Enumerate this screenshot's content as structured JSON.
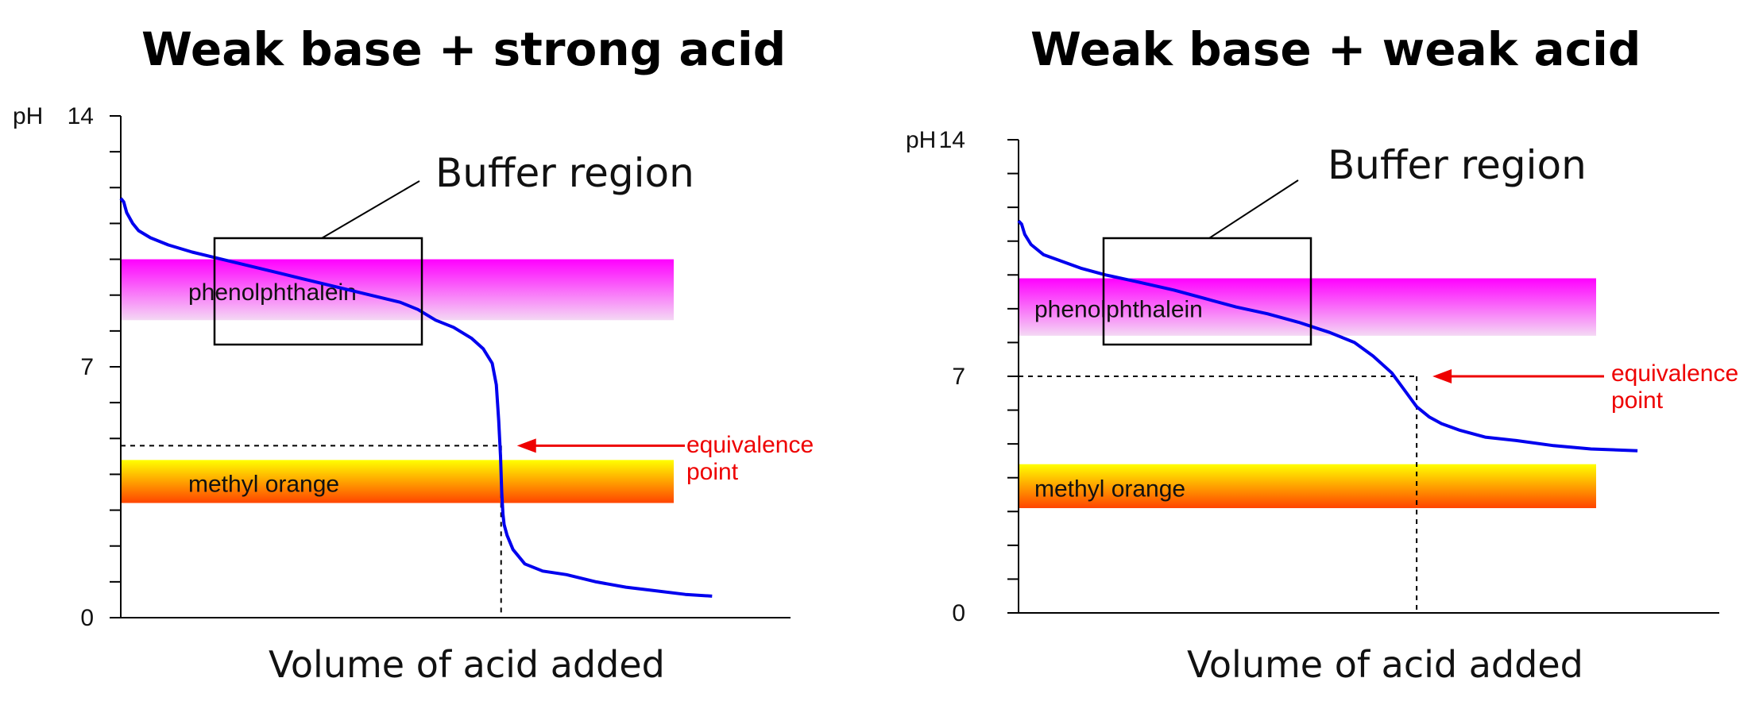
{
  "chart_data": [
    {
      "type": "line",
      "title": "Weak base + strong acid",
      "xlabel": "Volume of acid added",
      "ylabel": "pH",
      "ylim": [
        0,
        14
      ],
      "yticks": [
        {
          "value": 0,
          "label": "0"
        },
        {
          "value": 7,
          "label": "7"
        },
        {
          "value": 14,
          "label": "14"
        }
      ],
      "xlim": [
        0,
        100
      ],
      "grid": false,
      "series": [
        {
          "color": "#0000ee",
          "x": [
            0,
            0.5,
            1,
            2,
            3,
            5,
            8,
            12,
            17,
            22,
            27,
            32,
            37,
            42,
            47,
            50,
            53,
            56,
            59,
            61,
            62.5,
            63.2,
            63.6,
            63.9,
            64.1,
            64.3,
            64.5,
            65,
            66,
            68,
            71,
            75,
            80,
            85,
            90,
            95,
            99.5
          ],
          "y": [
            11.7,
            11.6,
            11.3,
            11.0,
            10.8,
            10.6,
            10.4,
            10.2,
            10.0,
            9.8,
            9.6,
            9.4,
            9.2,
            9.0,
            8.8,
            8.6,
            8.3,
            8.1,
            7.8,
            7.5,
            7.1,
            6.5,
            5.5,
            4.5,
            3.5,
            2.9,
            2.6,
            2.3,
            1.9,
            1.5,
            1.3,
            1.2,
            1.0,
            0.85,
            0.75,
            0.65,
            0.6
          ]
        }
      ],
      "bands": [
        {
          "label": "phenolphthalein",
          "ymin": 8.3,
          "ymax": 10.0,
          "colors": [
            "#ff00ff",
            "#f4d8f4"
          ]
        },
        {
          "label": "methyl orange",
          "ymin": 3.2,
          "ymax": 4.4,
          "colors": [
            "#ffff00",
            "#ff4400"
          ]
        }
      ],
      "equivalence_point": {
        "x": 64,
        "y": 4.8
      },
      "annotations": {
        "buffer_label": "Buffer region",
        "equivalence_label_line1": "equivalence",
        "equivalence_label_line2": "point"
      }
    },
    {
      "type": "line",
      "title": "Weak base + weak acid",
      "xlabel": "Volume of acid added",
      "ylabel": "pH",
      "ylim": [
        0,
        14
      ],
      "yticks": [
        {
          "value": 0,
          "label": "0"
        },
        {
          "value": 7,
          "label": "7"
        },
        {
          "value": 14,
          "label": "14"
        }
      ],
      "xlim": [
        0,
        100
      ],
      "grid": false,
      "series": [
        {
          "color": "#0000ee",
          "x": [
            0,
            0.5,
            1,
            2,
            4,
            7,
            10,
            14,
            19,
            25,
            30,
            35,
            40,
            45,
            50,
            54,
            57,
            60,
            62,
            64,
            66,
            68,
            71,
            75,
            80,
            86,
            92,
            99.5
          ],
          "y": [
            11.6,
            11.5,
            11.2,
            10.9,
            10.6,
            10.4,
            10.2,
            10.0,
            9.8,
            9.55,
            9.3,
            9.05,
            8.85,
            8.6,
            8.3,
            8.0,
            7.6,
            7.1,
            6.6,
            6.1,
            5.8,
            5.6,
            5.4,
            5.2,
            5.1,
            4.95,
            4.85,
            4.8
          ]
        }
      ],
      "bands": [
        {
          "label": "phenolphthalein",
          "ymin": 8.2,
          "ymax": 9.9,
          "colors": [
            "#ff00ff",
            "#f4d8f4"
          ]
        },
        {
          "label": "methyl orange",
          "ymin": 3.1,
          "ymax": 4.4,
          "colors": [
            "#ffff00",
            "#ff4400"
          ]
        }
      ],
      "equivalence_point": {
        "x": 64,
        "y": 7
      },
      "annotations": {
        "buffer_label": "Buffer region",
        "equivalence_label_line1": "equivalence",
        "equivalence_label_line2": "point"
      }
    }
  ]
}
